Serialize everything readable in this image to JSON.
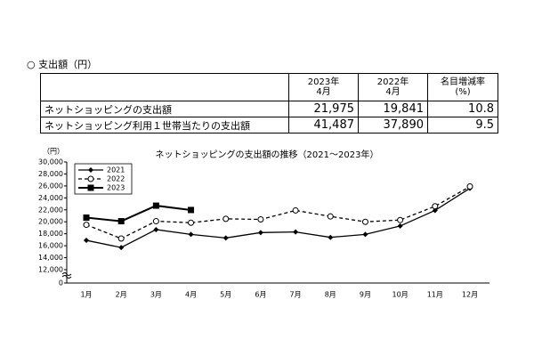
{
  "section": {
    "title": "支出額（円）"
  },
  "table": {
    "header": [
      "2023年\n4月",
      "2022年\n4月",
      "名目増減率\n(%)"
    ],
    "rows": [
      [
        "ネットショッピングの支出額",
        "21,975",
        "19,841",
        "10.8"
      ],
      [
        "ネットショッピング利用１世帯当たりの支出額",
        "41,487",
        "37,890",
        "9.5"
      ]
    ]
  },
  "chart_data": {
    "type": "line",
    "title": "ネットショッピングの支出額の推移（2021～2023年）",
    "y_label": "（円）",
    "categories": [
      "1月",
      "2月",
      "3月",
      "4月",
      "5月",
      "6月",
      "7月",
      "8月",
      "9月",
      "10月",
      "11月",
      "12月"
    ],
    "series": [
      {
        "name": "2021",
        "color": "#000000",
        "marker": "diamond",
        "dashed": false,
        "values": [
          16900,
          15700,
          18700,
          17900,
          17300,
          18200,
          18300,
          17400,
          17900,
          19300,
          21900,
          25600
        ]
      },
      {
        "name": "2022",
        "color": "#000000",
        "marker": "circle",
        "dashed": true,
        "values": [
          19500,
          17200,
          20100,
          19841,
          20500,
          20400,
          21900,
          20900,
          20000,
          20300,
          22600,
          25900
        ]
      },
      {
        "name": "2023",
        "color": "#000000",
        "marker": "square",
        "dashed": false,
        "values": [
          20700,
          20100,
          22700,
          21975,
          null,
          null,
          null,
          null,
          null,
          null,
          null,
          null
        ]
      }
    ],
    "ylim": [
      0,
      30000
    ],
    "axis_break": true,
    "yticks": [
      0,
      {
        "value": 12000,
        "label": "12,000"
      },
      {
        "value": 14000,
        "label": "14,000"
      },
      {
        "value": 16000,
        "label": "16,000"
      },
      {
        "value": 18000,
        "label": "18,000"
      },
      {
        "value": 20000,
        "label": "20,000"
      },
      {
        "value": 22000,
        "label": "22,000"
      },
      {
        "value": 24000,
        "label": "24,000"
      },
      {
        "value": 26000,
        "label": "26,000"
      },
      {
        "value": 28000,
        "label": "28,000"
      },
      {
        "value": 30000,
        "label": "30,000"
      }
    ],
    "grid": false,
    "legend": "upper left"
  }
}
